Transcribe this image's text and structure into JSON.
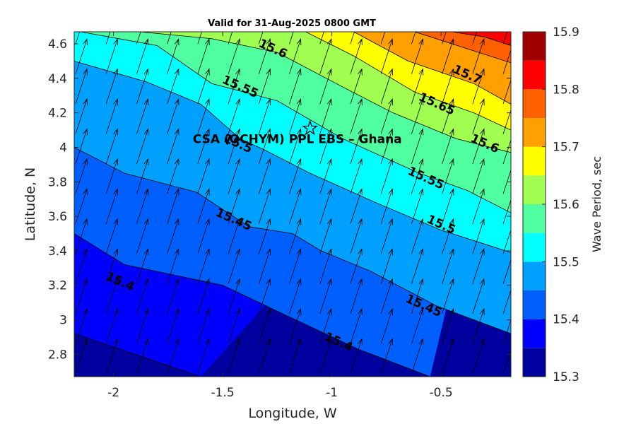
{
  "chart_data": {
    "type": "filled-contour",
    "title": "Valid for 31-Aug-2025 0800 GMT",
    "xlabel": "Longitude, W",
    "ylabel": "Latitude, N",
    "xlim": [
      -2.18,
      -0.18
    ],
    "ylim": [
      2.67,
      4.67
    ],
    "x_ticks": [
      -2,
      -1.5,
      -1,
      -0.5
    ],
    "x_tick_labels": [
      "-2",
      "-1.5",
      "-1",
      "-0.5"
    ],
    "y_ticks": [
      2.8,
      3,
      3.2,
      3.4,
      3.6,
      3.8,
      4,
      4.2,
      4.4,
      4.6
    ],
    "y_tick_labels": [
      "2.8",
      "3",
      "3.2",
      "3.4",
      "3.6",
      "3.8",
      "4",
      "4.2",
      "4.4",
      "4.6"
    ],
    "colorbar": {
      "label": "Wave Period, sec",
      "range": [
        15.3,
        15.9
      ],
      "tick_values": [
        15.3,
        15.4,
        15.5,
        15.6,
        15.7,
        15.8,
        15.9
      ],
      "tick_labels": [
        "15.3",
        "15.4",
        "15.5",
        "15.6",
        "15.7",
        "15.8",
        "15.9"
      ],
      "levels": [
        15.3,
        15.35,
        15.4,
        15.45,
        15.5,
        15.55,
        15.6,
        15.65,
        15.7,
        15.75,
        15.8,
        15.85,
        15.9
      ],
      "colors": [
        "#00009f",
        "#0000ff",
        "#0060ff",
        "#00a0ff",
        "#00ffff",
        "#50ffa0",
        "#a0ff50",
        "#ffff00",
        "#ffa000",
        "#ff6000",
        "#ff0000",
        "#a00000"
      ]
    },
    "contour_labels": [
      {
        "text": "15.6",
        "lon": -1.27,
        "lat": 4.57
      },
      {
        "text": "15.7",
        "lon": -0.38,
        "lat": 4.42
      },
      {
        "text": "15.55",
        "lon": -1.42,
        "lat": 4.35
      },
      {
        "text": "15.65",
        "lon": -0.52,
        "lat": 4.25
      },
      {
        "text": "15.5",
        "lon": -1.43,
        "lat": 4.02
      },
      {
        "text": "15.6",
        "lon": -0.3,
        "lat": 4.02
      },
      {
        "text": "15.55",
        "lon": -0.57,
        "lat": 3.82
      },
      {
        "text": "15.45",
        "lon": -1.45,
        "lat": 3.58
      },
      {
        "text": "15.5",
        "lon": -0.5,
        "lat": 3.55
      },
      {
        "text": "15.4",
        "lon": -1.97,
        "lat": 3.22
      },
      {
        "text": "15.45",
        "lon": -0.58,
        "lat": 3.08
      },
      {
        "text": "15.4",
        "lon": -0.97,
        "lat": 2.87
      }
    ],
    "site": {
      "name": "CSA (OCHYM) PPL EBS  – Ghana",
      "lon": -1.1,
      "lat": 4.11
    },
    "vector_direction": "northeast",
    "contour_lines": [
      {
        "level": 15.35,
        "points": [
          [
            -2.18,
            2.92
          ],
          [
            -1.6,
            2.67
          ]
        ]
      },
      {
        "level": 15.4,
        "points": [
          [
            -2.18,
            3.5
          ],
          [
            -1.95,
            3.32
          ],
          [
            -1.5,
            3.2
          ],
          [
            -1.2,
            3.02
          ],
          [
            -0.88,
            2.83
          ],
          [
            -0.55,
            2.67
          ]
        ]
      },
      {
        "level": 15.45,
        "points": [
          [
            -2.18,
            4.0
          ],
          [
            -1.95,
            3.85
          ],
          [
            -1.62,
            3.74
          ],
          [
            -1.38,
            3.54
          ],
          [
            -1.18,
            3.5
          ],
          [
            -1.05,
            3.4
          ],
          [
            -0.82,
            3.28
          ],
          [
            -0.52,
            3.08
          ],
          [
            -0.18,
            2.92
          ]
        ]
      },
      {
        "level": 15.5,
        "points": [
          [
            -2.18,
            4.5
          ],
          [
            -1.85,
            4.38
          ],
          [
            -1.6,
            4.25
          ],
          [
            -1.42,
            4.05
          ],
          [
            -1.3,
            3.98
          ],
          [
            -1.1,
            3.85
          ],
          [
            -0.8,
            3.68
          ],
          [
            -0.5,
            3.52
          ],
          [
            -0.18,
            3.39
          ]
        ]
      },
      {
        "level": 15.55,
        "points": [
          [
            -2.15,
            4.67
          ],
          [
            -1.8,
            4.59
          ],
          [
            -1.55,
            4.37
          ],
          [
            -1.25,
            4.27
          ],
          [
            -0.95,
            4.05
          ],
          [
            -0.6,
            3.85
          ],
          [
            -0.38,
            3.75
          ],
          [
            -0.18,
            3.62
          ]
        ]
      },
      {
        "level": 15.6,
        "points": [
          [
            -1.88,
            4.67
          ],
          [
            -1.55,
            4.63
          ],
          [
            -1.25,
            4.55
          ],
          [
            -0.95,
            4.35
          ],
          [
            -0.72,
            4.2
          ],
          [
            -0.43,
            4.05
          ],
          [
            -0.18,
            3.97
          ]
        ]
      },
      {
        "level": 15.65,
        "points": [
          [
            -1.12,
            4.67
          ],
          [
            -0.9,
            4.53
          ],
          [
            -0.62,
            4.32
          ],
          [
            -0.35,
            4.2
          ],
          [
            -0.18,
            4.1
          ]
        ]
      },
      {
        "level": 15.7,
        "points": [
          [
            -0.9,
            4.67
          ],
          [
            -0.65,
            4.5
          ],
          [
            -0.35,
            4.37
          ],
          [
            -0.18,
            4.25
          ]
        ]
      },
      {
        "level": 15.75,
        "points": [
          [
            -0.62,
            4.67
          ],
          [
            -0.4,
            4.58
          ],
          [
            -0.18,
            4.49
          ]
        ]
      },
      {
        "level": 15.8,
        "points": [
          [
            -0.45,
            4.67
          ],
          [
            -0.3,
            4.64
          ],
          [
            -0.18,
            4.59
          ]
        ]
      }
    ]
  }
}
